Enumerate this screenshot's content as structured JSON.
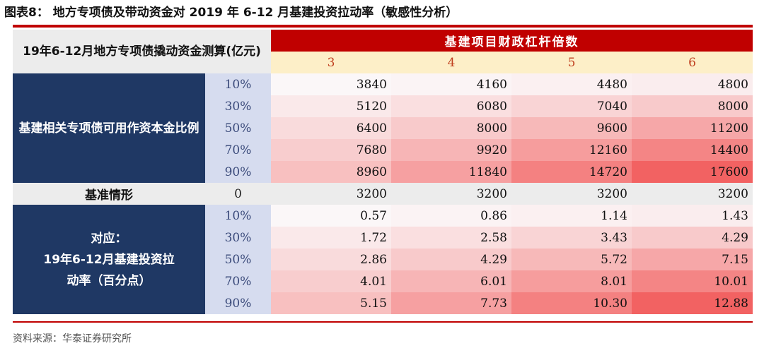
{
  "title": "图表8：  地方专项债及带动资金对 2019 年 6-12 月基建投资拉动率（敏感性分析）",
  "corner_label": "19年6-12月地方专项债撬动资金测算(亿元)",
  "header": {
    "group_label": "基建项目财政杠杆倍数",
    "multipliers": [
      "3",
      "4",
      "5",
      "6"
    ]
  },
  "section1": {
    "label": "基建相关专项债可用作资本金比例",
    "rows": [
      {
        "pct": "10%",
        "values": [
          "3840",
          "4160",
          "4480",
          "4800"
        ]
      },
      {
        "pct": "30%",
        "values": [
          "5120",
          "6080",
          "7040",
          "8000"
        ]
      },
      {
        "pct": "50%",
        "values": [
          "6400",
          "8000",
          "9600",
          "11200"
        ]
      },
      {
        "pct": "70%",
        "values": [
          "7680",
          "9920",
          "12160",
          "14400"
        ]
      },
      {
        "pct": "90%",
        "values": [
          "8960",
          "11840",
          "14720",
          "17600"
        ]
      }
    ]
  },
  "baseline": {
    "label": "基准情形",
    "pct": "0",
    "values": [
      "3200",
      "3200",
      "3200",
      "3200"
    ]
  },
  "section2": {
    "label_line1": "对应：",
    "label_line2": "19年6-12月基建投资拉",
    "label_line3": "动率（百分点）",
    "rows": [
      {
        "pct": "10%",
        "values": [
          "0.57",
          "0.86",
          "1.14",
          "1.43"
        ]
      },
      {
        "pct": "30%",
        "values": [
          "1.72",
          "2.58",
          "3.43",
          "4.29"
        ]
      },
      {
        "pct": "50%",
        "values": [
          "2.86",
          "4.29",
          "5.72",
          "7.15"
        ]
      },
      {
        "pct": "70%",
        "values": [
          "4.01",
          "6.01",
          "8.01",
          "10.01"
        ]
      },
      {
        "pct": "90%",
        "values": [
          "5.15",
          "7.73",
          "10.30",
          "12.88"
        ]
      }
    ]
  },
  "source": "资料来源：华泰证券研究所",
  "colors": {
    "red": "#c00000",
    "navy": "#1f3864",
    "lavender": "#d6dcef",
    "cream": "#fdefc8",
    "heat_low": "#fbf7f8",
    "heat_high": "#f26262"
  }
}
